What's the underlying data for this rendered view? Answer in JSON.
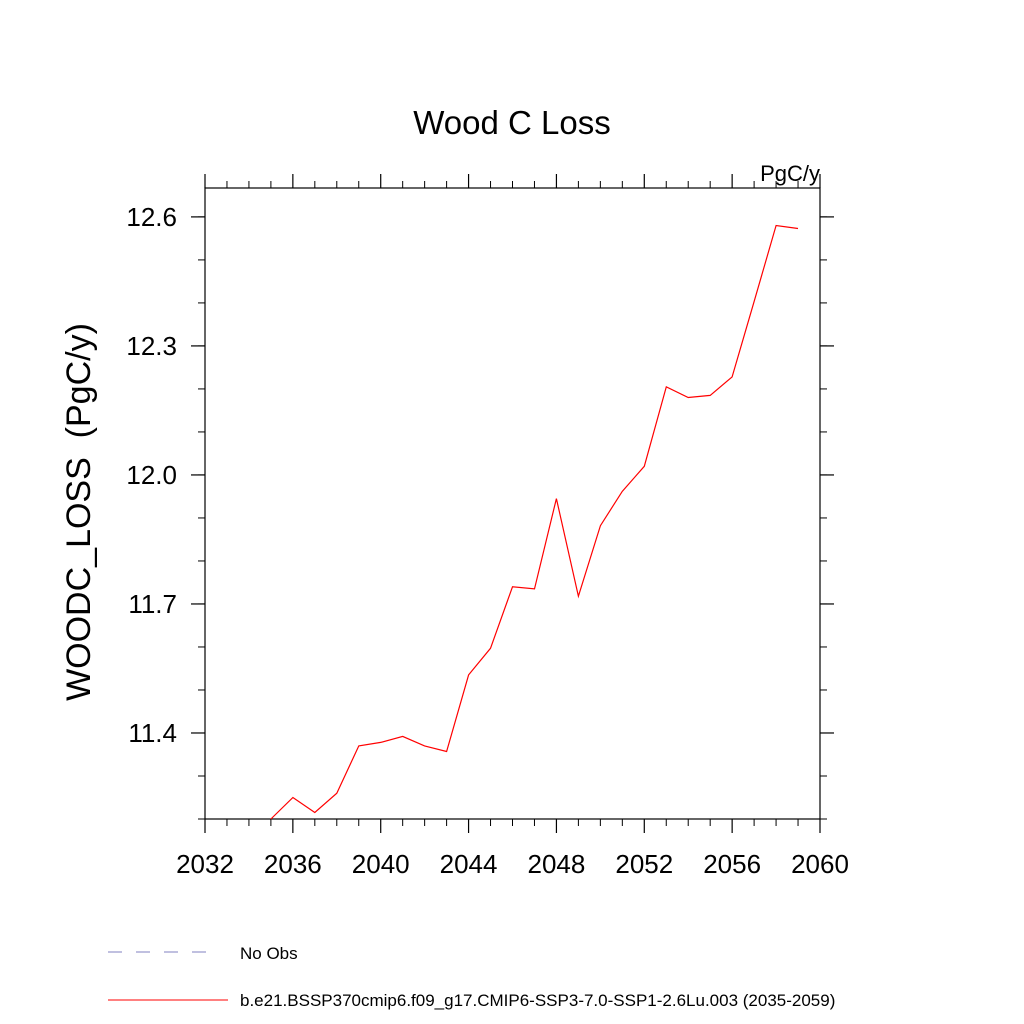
{
  "chart_data": {
    "type": "line",
    "title": "Wood C Loss",
    "units_label": "PgC/y",
    "ylabel": "WOODC_LOSS  (PgC/y)",
    "xlabel": "",
    "xlim": [
      2032,
      2060
    ],
    "ylim": [
      11.2,
      12.63
    ],
    "x_ticks": [
      "2032",
      "2036",
      "2040",
      "2044",
      "2048",
      "2052",
      "2056",
      "2060"
    ],
    "y_ticks": [
      "11.4",
      "11.7",
      "12.0",
      "12.3",
      "12.6"
    ],
    "series": [
      {
        "name": "b.e21.BSSP370cmip6.f09_g17.CMIP6-SSP3-7.0-SSP1-2.6Lu.003 (2035-2059)",
        "color": "#ff0000",
        "x": [
          2035,
          2036,
          2037,
          2038,
          2039,
          2040,
          2041,
          2042,
          2043,
          2044,
          2045,
          2046,
          2047,
          2048,
          2049,
          2050,
          2051,
          2052,
          2053,
          2054,
          2055,
          2056,
          2057,
          2058,
          2059
        ],
        "y": [
          11.2,
          11.25,
          11.215,
          11.26,
          11.37,
          11.378,
          11.392,
          11.37,
          11.357,
          11.535,
          11.597,
          11.74,
          11.735,
          11.945,
          11.718,
          11.882,
          11.962,
          12.02,
          12.205,
          12.18,
          12.185,
          12.228,
          12.403,
          12.58,
          12.573
        ]
      }
    ],
    "legend": [
      {
        "label": "No Obs",
        "style": "dashed",
        "color": "#8080c0"
      },
      {
        "label": "b.e21.BSSP370cmip6.f09_g17.CMIP6-SSP3-7.0-SSP1-2.6Lu.003 (2035-2059)",
        "style": "solid",
        "color": "#ff0000"
      }
    ],
    "legend_position": "bottom-left"
  }
}
